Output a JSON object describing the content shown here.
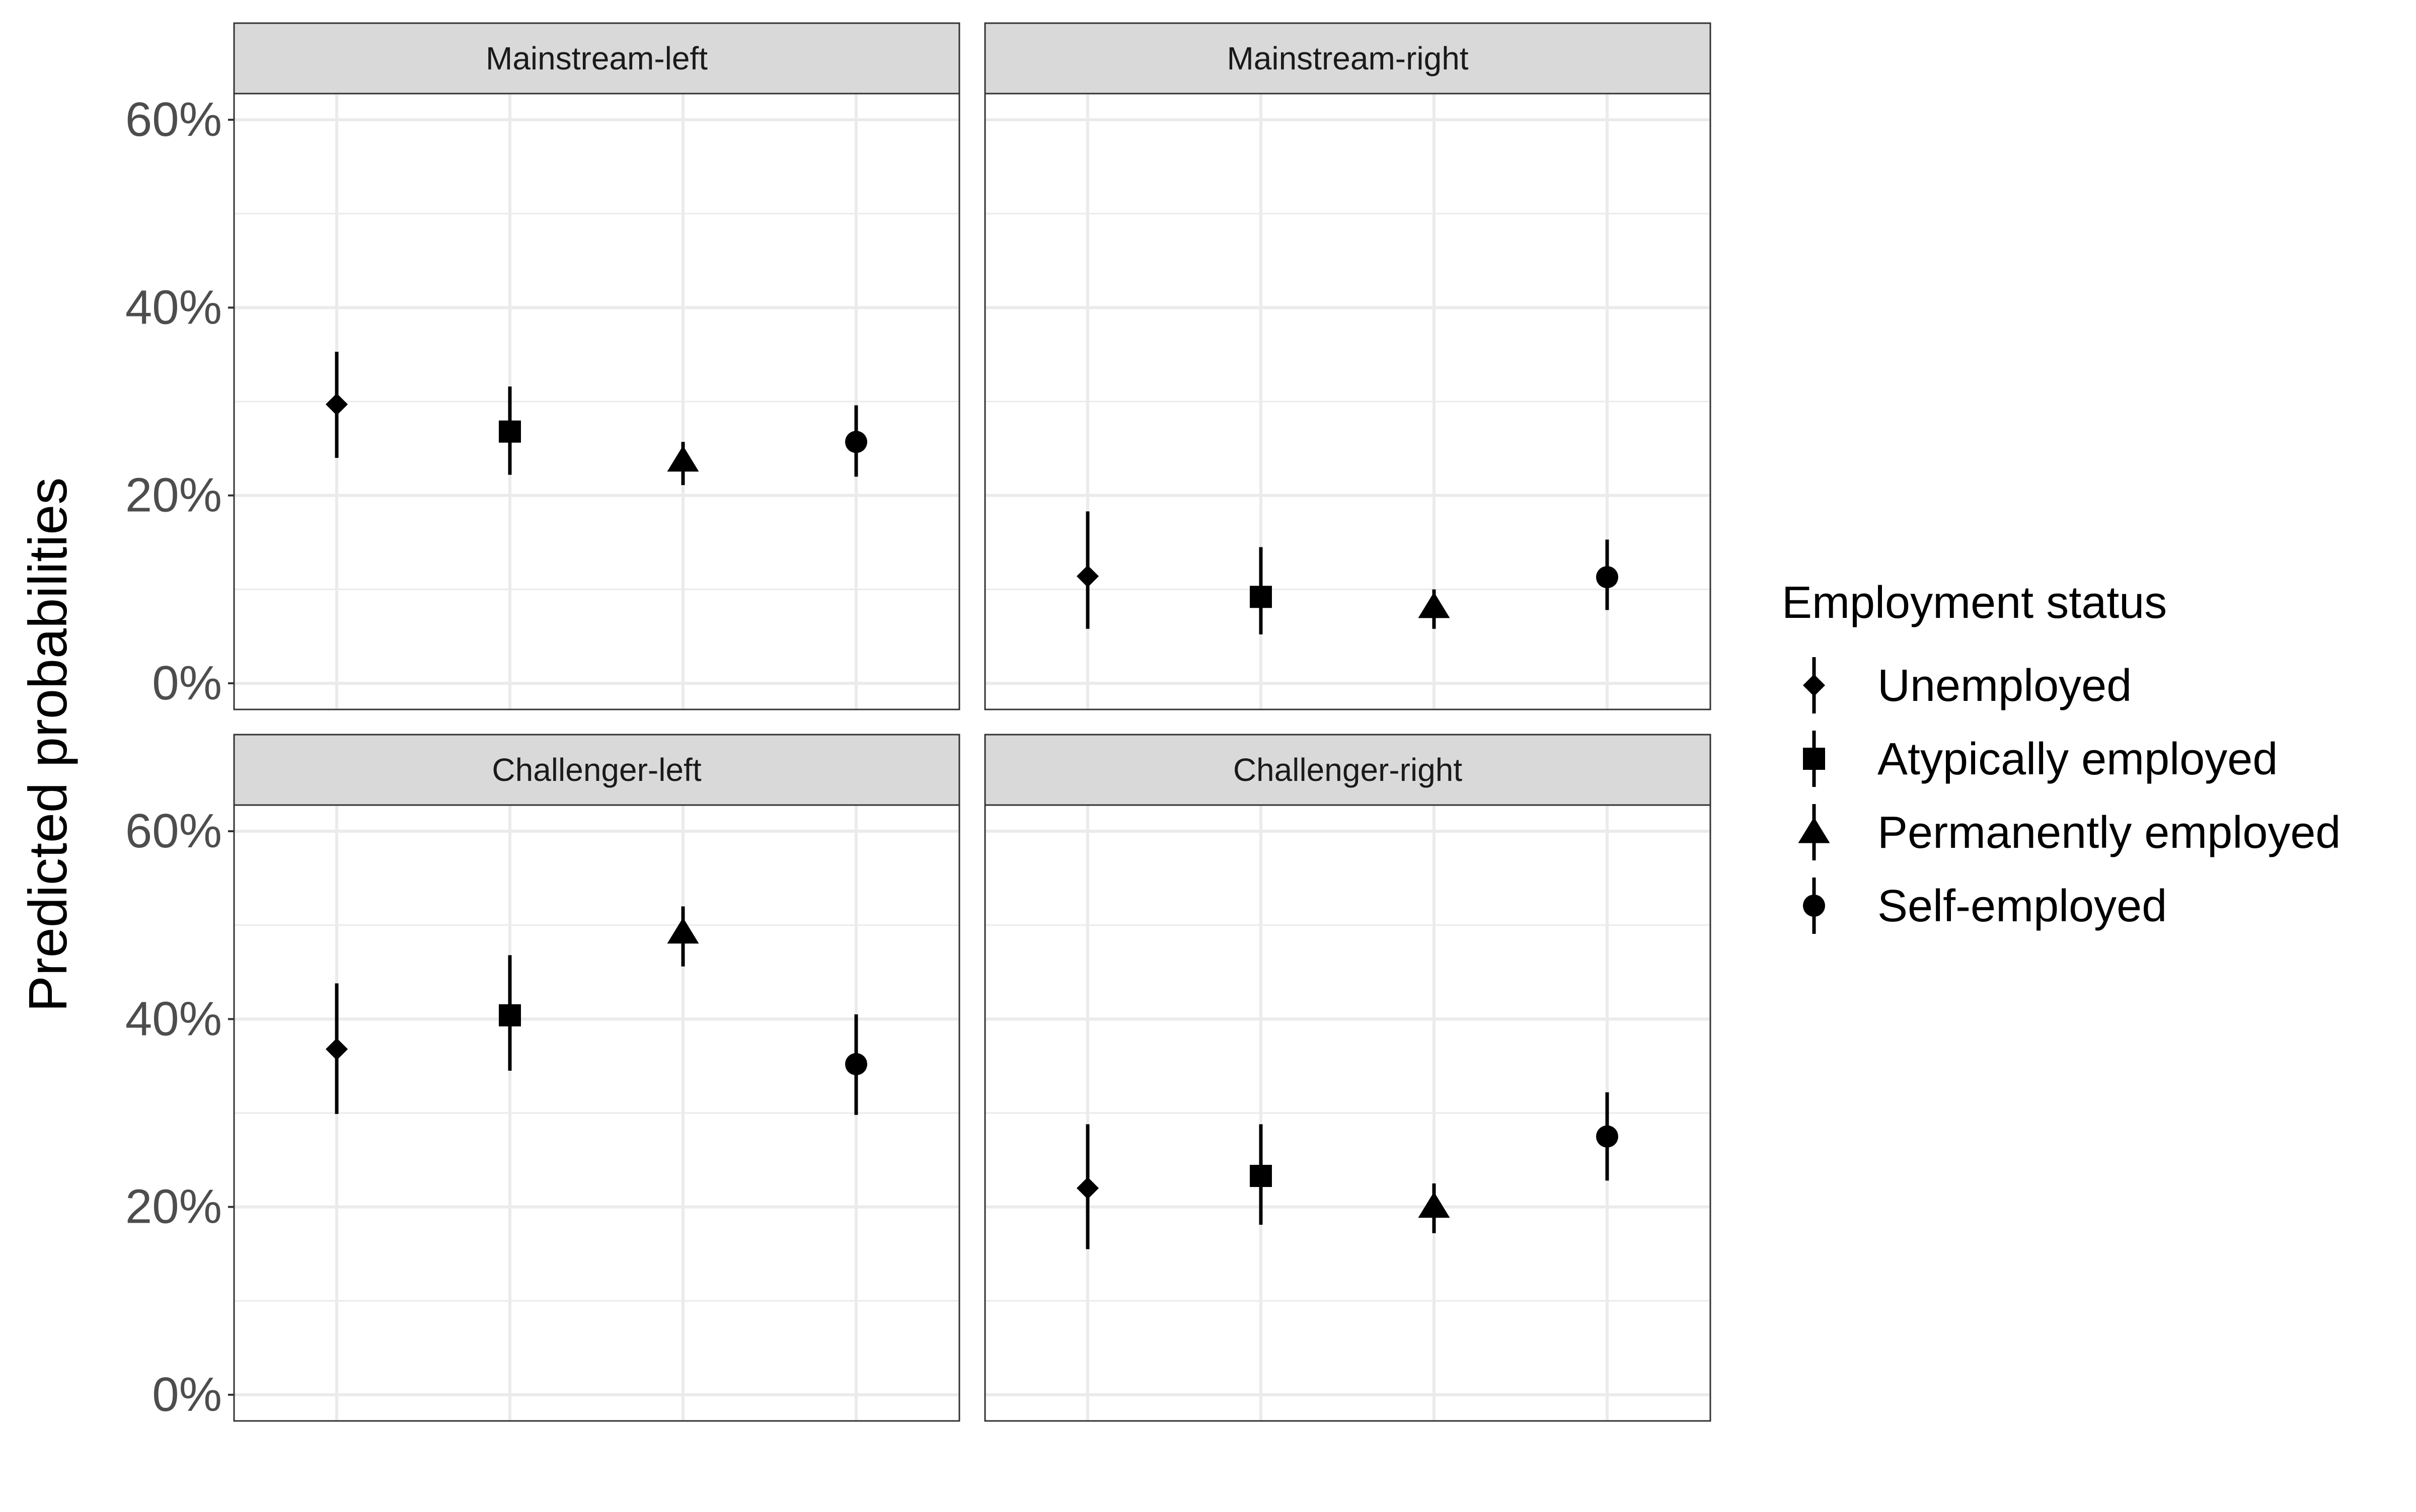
{
  "chart_data": {
    "type": "scatter",
    "subtype": "point-range facets",
    "ylabel": "Predicted probabilities",
    "xlabel": "",
    "ylim": [
      0,
      0.7
    ],
    "y_ticks": [
      0,
      0.2,
      0.4,
      0.6
    ],
    "y_tick_labels": [
      "0%",
      "20%",
      "40%",
      "60%"
    ],
    "grid": true,
    "legend": {
      "title": "Employment status",
      "position": "right",
      "entries": [
        {
          "label": "Unemployed",
          "shape": "diamond"
        },
        {
          "label": "Atypically employed",
          "shape": "square"
        },
        {
          "label": "Permanently employed",
          "shape": "triangle"
        },
        {
          "label": "Self-employed",
          "shape": "circle"
        }
      ]
    },
    "categories": [
      "Unemployed",
      "Atypically employed",
      "Permanently employed",
      "Self-employed"
    ],
    "panels": [
      {
        "title": "Mainstream-left",
        "estimates": [
          0.297,
          0.268,
          0.237,
          0.257
        ],
        "lower": [
          0.24,
          0.222,
          0.211,
          0.22
        ],
        "upper": [
          0.353,
          0.316,
          0.257,
          0.296
        ]
      },
      {
        "title": "Mainstream-right",
        "estimates": [
          0.114,
          0.092,
          0.081,
          0.113
        ],
        "lower": [
          0.058,
          0.052,
          0.058,
          0.078
        ],
        "upper": [
          0.183,
          0.145,
          0.1,
          0.153
        ]
      },
      {
        "title": "Challenger-left",
        "estimates": [
          0.368,
          0.404,
          0.492,
          0.352
        ],
        "lower": [
          0.299,
          0.345,
          0.456,
          0.298
        ],
        "upper": [
          0.438,
          0.468,
          0.52,
          0.405
        ]
      },
      {
        "title": "Challenger-right",
        "estimates": [
          0.22,
          0.233,
          0.2,
          0.275
        ],
        "lower": [
          0.155,
          0.181,
          0.172,
          0.228
        ],
        "upper": [
          0.288,
          0.288,
          0.225,
          0.322
        ]
      }
    ]
  }
}
